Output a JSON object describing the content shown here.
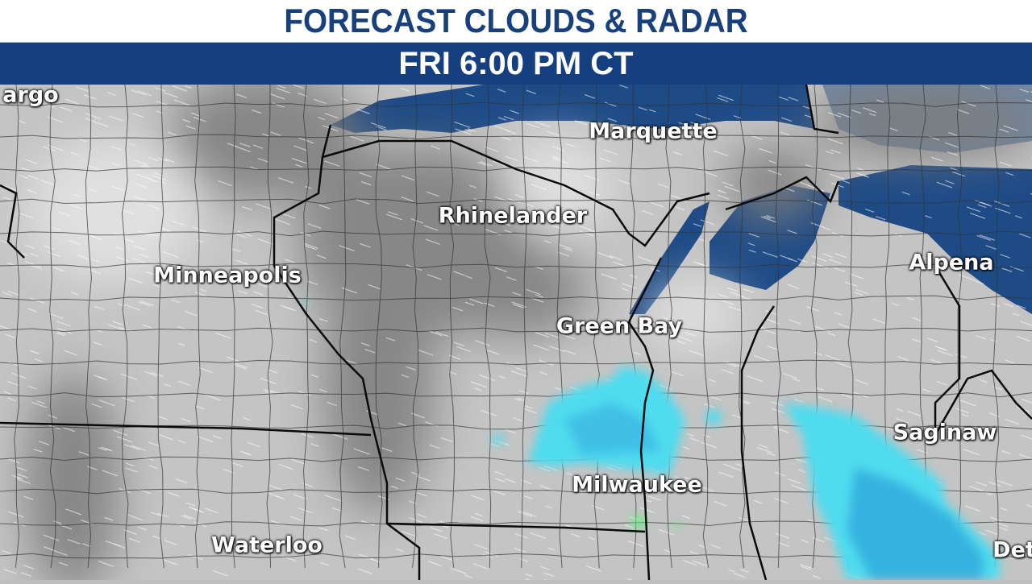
{
  "header": {
    "title": "FORECAST CLOUDS & RADAR",
    "valid_time": "FRI  6:00 PM CT"
  },
  "colors": {
    "title_text": "#17407d",
    "band": "#163f80",
    "water": "#1e4b86",
    "land": "#bdbdbd",
    "cloud": "#8a8a8a",
    "radar_light": "#4fdcef",
    "radar_heavy": "#2fa3d8",
    "radar_green": "#5ff07a"
  },
  "cities": [
    {
      "name": "argo"
    },
    {
      "name": "Marquette"
    },
    {
      "name": "Rhinelander"
    },
    {
      "name": "Minneapolis"
    },
    {
      "name": "Green Bay"
    },
    {
      "name": "Alpena"
    },
    {
      "name": "Saginaw"
    },
    {
      "name": "Milwaukee"
    },
    {
      "name": "Waterloo"
    },
    {
      "name": "Det"
    }
  ]
}
